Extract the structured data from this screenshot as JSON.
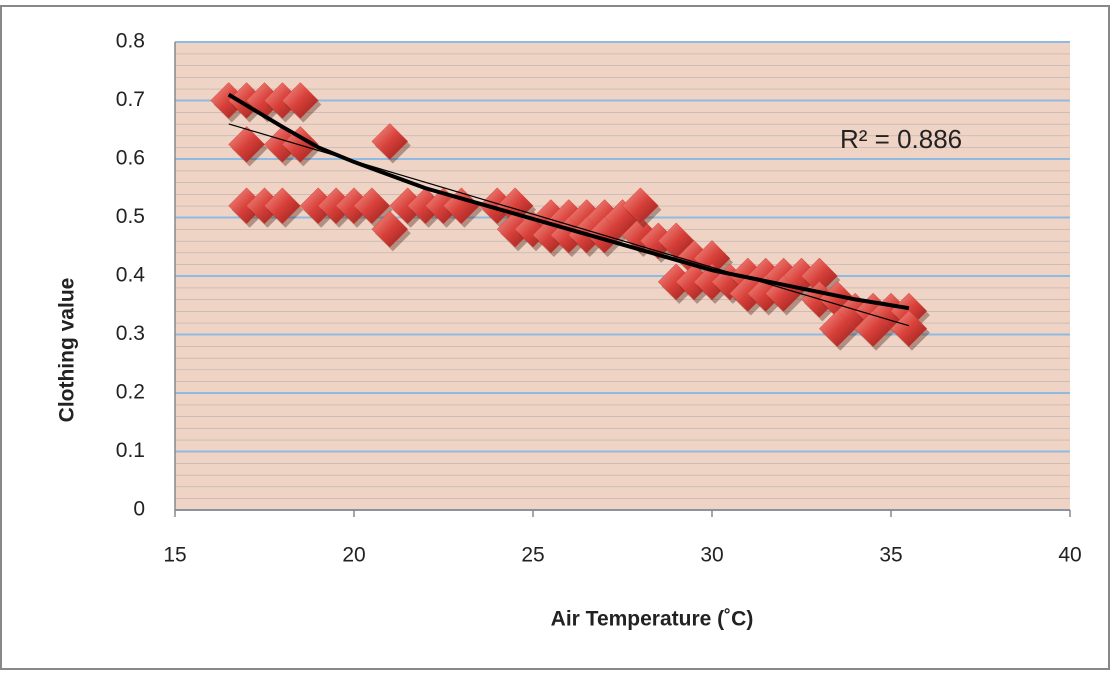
{
  "chart_data": {
    "type": "scatter",
    "x_label": "Air Temperature  (˚C)",
    "y_label": "Clothing value",
    "annotation": "R² = 0.886",
    "xlim": [
      15,
      40
    ],
    "xticks": [
      15,
      20,
      25,
      30,
      35,
      40
    ],
    "ylim": [
      0,
      0.8
    ],
    "yticks": [
      0,
      0.1,
      0.2,
      0.3,
      0.4,
      0.5,
      0.6,
      0.7,
      0.8
    ],
    "grid": true,
    "series": [
      {
        "color": "#d8403a",
        "x": [
          16.5,
          17,
          17.5,
          18,
          18.5,
          17,
          18,
          18.5,
          21,
          17,
          17.5,
          18,
          19,
          19.5,
          20,
          20.5,
          21.5,
          22,
          22.5,
          23,
          24,
          24.5,
          21,
          24.5,
          25,
          25.5,
          26,
          26.5,
          27,
          27.5,
          25.5,
          26,
          26.5,
          27,
          28,
          28,
          28.5,
          29,
          29.5,
          30,
          29,
          29.5,
          30,
          30.5,
          31,
          31.5,
          32,
          32.5,
          33,
          31,
          31.5,
          32,
          33,
          33.5,
          34,
          34.5,
          35,
          35.5,
          33.5,
          34.5,
          35.5
        ],
        "values": [
          0.7,
          0.7,
          0.7,
          0.7,
          0.7,
          0.625,
          0.625,
          0.625,
          0.63,
          0.52,
          0.52,
          0.52,
          0.52,
          0.52,
          0.52,
          0.52,
          0.52,
          0.52,
          0.52,
          0.52,
          0.52,
          0.52,
          0.48,
          0.48,
          0.48,
          0.5,
          0.5,
          0.5,
          0.5,
          0.5,
          0.47,
          0.47,
          0.47,
          0.47,
          0.47,
          0.52,
          0.46,
          0.46,
          0.43,
          0.43,
          0.39,
          0.39,
          0.39,
          0.39,
          0.4,
          0.4,
          0.4,
          0.4,
          0.4,
          0.37,
          0.37,
          0.37,
          0.36,
          0.36,
          0.34,
          0.34,
          0.34,
          0.34,
          0.31,
          0.31,
          0.31
        ]
      }
    ],
    "trendlines": [
      {
        "color": "#000000",
        "x": [
          16.5,
          18,
          19,
          20,
          22,
          24,
          26,
          28,
          30,
          32,
          34,
          35.5
        ],
        "values": [
          0.71,
          0.655,
          0.62,
          0.595,
          0.55,
          0.515,
          0.48,
          0.445,
          0.41,
          0.385,
          0.36,
          0.345
        ]
      },
      {
        "color": "#000000",
        "x": [
          16.5,
          35.5
        ],
        "values": [
          0.66,
          0.315
        ]
      }
    ]
  }
}
